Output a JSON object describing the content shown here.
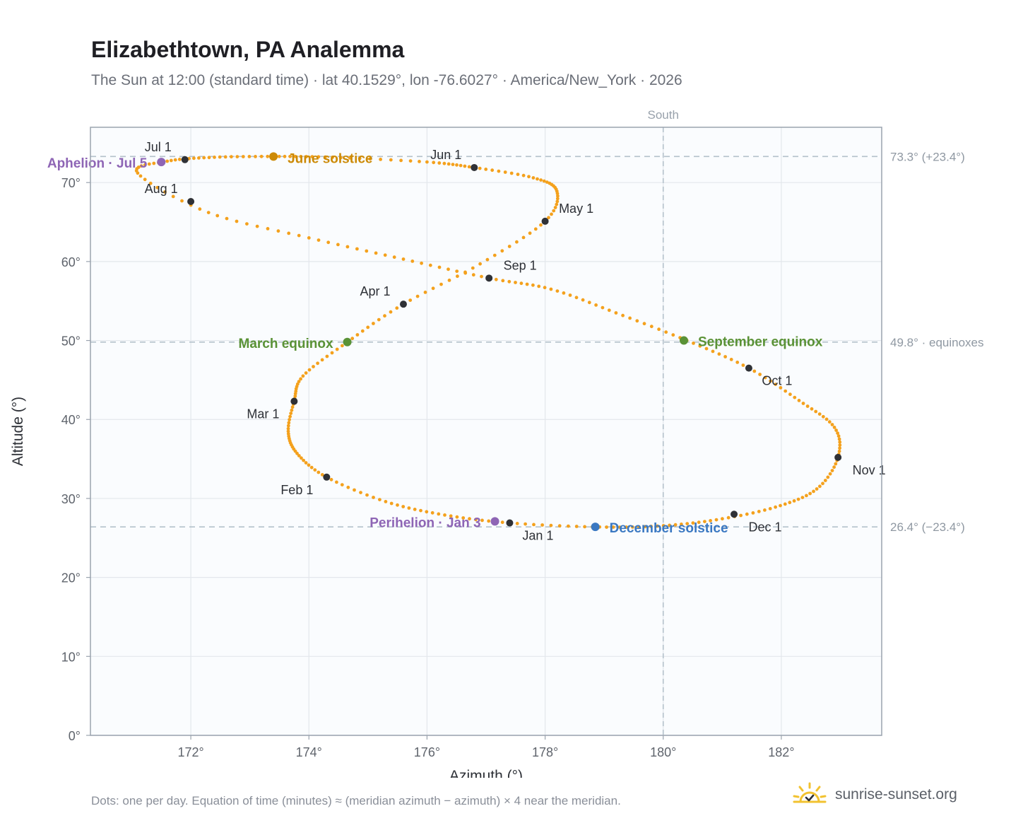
{
  "header": {
    "title": "Elizabethtown, PA Analemma",
    "subtitle": "The Sun at 12:00 (standard time) · lat 40.1529°, lon -76.6027° · America/New_York · 2026"
  },
  "footer": {
    "note": "Dots: one per day. Equation of time (minutes) ≈ (meridian azimuth − azimuth) × 4 near the meridian.",
    "brand": "sunrise-sunset.org"
  },
  "colors": {
    "path": "#f4a11d",
    "month_marker": "#2f3136",
    "aphelion": "#8e65b5",
    "perihelion": "#8e65b5",
    "june_solstice": "#cc8a06",
    "december_solstice": "#3a78c2",
    "equinox": "#5a9236",
    "grid": "#e3e7ec",
    "reference": "#b4c1cb",
    "plot_bg": "#fafcfe"
  },
  "chart_data": {
    "type": "scatter",
    "xlabel": "Azimuth (°)",
    "ylabel": "Altitude (°)",
    "xlim": [
      170.3,
      183.7
    ],
    "ylim": [
      0,
      77
    ],
    "x_ticks": [
      172,
      174,
      176,
      178,
      180,
      182
    ],
    "y_ticks": [
      0,
      10,
      20,
      30,
      40,
      50,
      60,
      70
    ],
    "grid": true,
    "meridian": {
      "azimuth": 180,
      "label": "South"
    },
    "reference_lines": [
      {
        "altitude": 73.3,
        "label": "73.3° (+23.4°)"
      },
      {
        "altitude": 49.8,
        "label": "49.8° · equinoxes"
      },
      {
        "altitude": 26.4,
        "label": "26.4° (−23.4°)"
      }
    ],
    "daily_path": [
      [
        177.4,
        26.9
      ],
      [
        178.8,
        26.4
      ],
      [
        179.9,
        26.5
      ],
      [
        180.9,
        27.3
      ],
      [
        181.9,
        28.9
      ],
      [
        182.6,
        31.2
      ],
      [
        182.96,
        35.2
      ],
      [
        182.9,
        39.0
      ],
      [
        182.3,
        42.4
      ],
      [
        181.45,
        46.5
      ],
      [
        180.4,
        50.0
      ],
      [
        179.2,
        53.5
      ],
      [
        178.1,
        56.5
      ],
      [
        177.05,
        57.9
      ],
      [
        175.6,
        60.3
      ],
      [
        174.0,
        63.0
      ],
      [
        172.3,
        66.2
      ],
      [
        171.1,
        71.2
      ],
      [
        171.6,
        72.7
      ],
      [
        172.4,
        73.2
      ],
      [
        173.4,
        73.3
      ],
      [
        174.4,
        73.2
      ],
      [
        176.0,
        72.6
      ],
      [
        176.8,
        71.9
      ],
      [
        177.8,
        70.6
      ],
      [
        178.2,
        68.9
      ],
      [
        178.0,
        65.1
      ],
      [
        176.9,
        59.7
      ],
      [
        175.6,
        54.6
      ],
      [
        174.65,
        49.8
      ],
      [
        173.9,
        45.5
      ],
      [
        173.75,
        42.3
      ],
      [
        173.65,
        38.5
      ],
      [
        173.8,
        35.7
      ],
      [
        174.3,
        32.7
      ],
      [
        175.3,
        29.6
      ],
      [
        176.3,
        27.9
      ],
      [
        177.4,
        26.9
      ]
    ],
    "monthly_markers": [
      {
        "label": "Jan 1",
        "azimuth": 177.4,
        "altitude": 26.9
      },
      {
        "label": "Feb 1",
        "azimuth": 174.3,
        "altitude": 32.7
      },
      {
        "label": "Mar 1",
        "azimuth": 173.75,
        "altitude": 42.3
      },
      {
        "label": "Apr 1",
        "azimuth": 175.6,
        "altitude": 54.6
      },
      {
        "label": "May 1",
        "azimuth": 178.0,
        "altitude": 65.1
      },
      {
        "label": "Jun 1",
        "azimuth": 176.8,
        "altitude": 71.9
      },
      {
        "label": "Jul 1",
        "azimuth": 171.9,
        "altitude": 72.9
      },
      {
        "label": "Aug 1",
        "azimuth": 172.0,
        "altitude": 67.6
      },
      {
        "label": "Sep 1",
        "azimuth": 177.05,
        "altitude": 57.9
      },
      {
        "label": "Oct 1",
        "azimuth": 181.45,
        "altitude": 46.5
      },
      {
        "label": "Nov 1",
        "azimuth": 182.96,
        "altitude": 35.2
      },
      {
        "label": "Dec 1",
        "azimuth": 181.2,
        "altitude": 28.0
      }
    ],
    "events": [
      {
        "label": "Aphelion · Jul 5",
        "azimuth": 171.5,
        "altitude": 72.6,
        "color_key": "aphelion"
      },
      {
        "label": "June solstice",
        "azimuth": 173.4,
        "altitude": 73.3,
        "color_key": "june_solstice"
      },
      {
        "label": "March equinox",
        "azimuth": 174.65,
        "altitude": 49.8,
        "color_key": "equinox"
      },
      {
        "label": "September equinox",
        "azimuth": 180.35,
        "altitude": 50.0,
        "color_key": "equinox"
      },
      {
        "label": "Perihelion · Jan 3",
        "azimuth": 177.15,
        "altitude": 27.1,
        "color_key": "perihelion"
      },
      {
        "label": "December solstice",
        "azimuth": 178.85,
        "altitude": 26.4,
        "color_key": "december_solstice"
      }
    ]
  }
}
